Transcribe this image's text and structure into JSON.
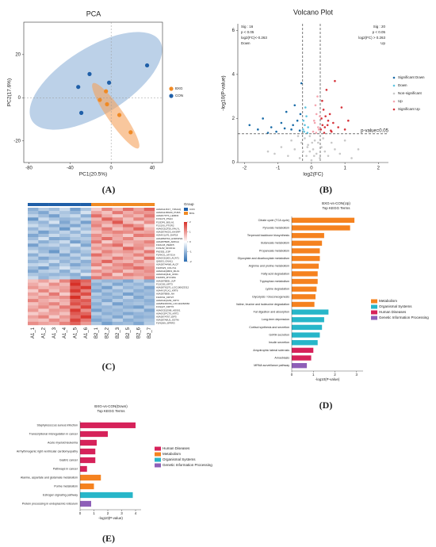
{
  "panel_labels": [
    "(A)",
    "(B)",
    "(C)",
    "(D)",
    "(E)"
  ],
  "chart_data": [
    {
      "type": "scatter",
      "title": "PCA",
      "x_label": "PC1(20.5%)",
      "y_label": "PC2(17.6%)",
      "xlim": [
        -85,
        50
      ],
      "ylim": [
        -30,
        35
      ],
      "xticks": [
        -80,
        -40,
        0,
        40
      ],
      "yticks": [
        -20,
        0,
        20
      ],
      "frame": true,
      "zero_lines": true,
      "legend": "right",
      "series": [
        {
          "name": "BXG",
          "color": "#f08a24",
          "x": [
            -11,
            -5,
            -4,
            8,
            19
          ],
          "y": [
            -1,
            3,
            -3,
            -8,
            -16
          ]
        },
        {
          "name": "CON",
          "color": "#1f5fa8",
          "x": [
            -21,
            -32,
            -2,
            -29,
            35
          ],
          "y": [
            11,
            5,
            7,
            -7,
            15
          ]
        }
      ]
    },
    {
      "type": "scatter",
      "title": "Volcano Plot",
      "x_label": "log2(FC)",
      "y_label": "-log10(P-value)",
      "xlim": [
        -2.2,
        2.3
      ],
      "ylim": [
        0,
        6.3
      ],
      "xticks": [
        -2,
        -1,
        0,
        1,
        2
      ],
      "yticks": [
        0,
        2,
        4,
        6
      ],
      "frame": false,
      "zero_lines": false,
      "legend": "right",
      "x_thresholds": [
        -0.263,
        0.263
      ],
      "y_threshold": 1.301,
      "threshold_label": "p-value=0.05",
      "annotations_left": [
        "Sig : 16",
        "p < 0.05",
        "log2(FC)<-0.263",
        "Down"
      ],
      "annotations_right": [
        "Sig : 20",
        "p < 0.05",
        "log2(FC) > 0.263",
        "Up"
      ],
      "series": [
        {
          "name": "Significant Down",
          "color": "#1a6ca8",
          "x": [
            -1.85,
            -1.6,
            -1.45,
            -1.2,
            -1.05,
            -0.9,
            -0.75,
            -0.6,
            -0.5,
            -0.42,
            -0.35,
            -0.3,
            -1.3,
            -0.8,
            -0.55,
            -0.33
          ],
          "y": [
            1.7,
            1.5,
            2.0,
            1.6,
            1.4,
            1.8,
            2.3,
            1.5,
            2.6,
            1.9,
            1.45,
            3.6,
            1.35,
            1.55,
            1.7,
            2.2
          ]
        },
        {
          "name": "Down",
          "color": "#5ec4e0",
          "x": [
            -0.25,
            -0.2,
            -0.15,
            -0.22,
            -0.18,
            -0.1,
            -0.24,
            -0.12
          ],
          "y": [
            1.5,
            1.7,
            2.1,
            1.4,
            2.5,
            1.6,
            1.9,
            1.35
          ]
        },
        {
          "name": "Non-significant",
          "color": "#c8c8c8",
          "x": [
            -1.1,
            -0.9,
            -0.7,
            -0.6,
            -0.5,
            -0.4,
            -0.35,
            -0.3,
            -0.25,
            -0.2,
            -0.15,
            -0.1,
            -0.05,
            0,
            0.05,
            0.1,
            0.15,
            0.2,
            0.25,
            0.3,
            0.35,
            0.4,
            0.5,
            0.6,
            0.7,
            0.85,
            1.0,
            1.2,
            -0.05,
            0.02,
            0.08,
            -0.12,
            1.4,
            -1.3
          ],
          "y": [
            0.4,
            0.7,
            0.3,
            1.0,
            0.6,
            1.2,
            0.2,
            0.9,
            0.5,
            1.1,
            0.3,
            0.8,
            1.2,
            0.1,
            0.6,
            1.0,
            0.4,
            0.9,
            0.2,
            0.7,
            1.1,
            0.5,
            0.3,
            0.9,
            0.6,
            0.4,
            1.0,
            0.2,
            0.5,
            0.9,
            0.3,
            0.7,
            0.6,
            0.5
          ]
        },
        {
          "name": "Up",
          "color": "#f4a6b0",
          "x": [
            0.05,
            0.1,
            0.15,
            0.2,
            0.12,
            0.22,
            0.08,
            0.18,
            0.25,
            0.14
          ],
          "y": [
            1.4,
            1.8,
            2.2,
            1.6,
            2.6,
            1.5,
            1.9,
            3.0,
            2.1,
            1.35
          ]
        },
        {
          "name": "Significant Up",
          "color": "#d6333a",
          "x": [
            0.28,
            0.3,
            0.33,
            0.36,
            0.4,
            0.45,
            0.5,
            0.55,
            0.6,
            0.65,
            0.7,
            0.8,
            0.9,
            1.0,
            1.1,
            0.32,
            0.38,
            0.42,
            0.48,
            0.58
          ],
          "y": [
            1.5,
            2.0,
            1.7,
            2.4,
            1.6,
            3.3,
            1.9,
            2.2,
            1.4,
            1.8,
            3.7,
            1.6,
            2.5,
            1.5,
            1.9,
            2.8,
            1.35,
            2.1,
            1.7,
            1.45
          ]
        }
      ]
    },
    {
      "type": "heatmap",
      "legend_title": "Group",
      "columns": [
        "A1_1",
        "A1_2",
        "A1_3",
        "A1_4",
        "A1_5",
        "A1_6",
        "B2_1",
        "B2_2",
        "B2_3",
        "B2_5",
        "B2_6",
        "B2_7"
      ],
      "column_groups": [
        "CON",
        "CON",
        "CON",
        "CON",
        "CON",
        "CON",
        "BXG",
        "BXG",
        "BXG",
        "BXG",
        "BXG",
        "BXG"
      ],
      "group_legend": [
        {
          "name": "CON",
          "color": "#1f5fa8"
        },
        {
          "name": "BXG",
          "color": "#f08a24"
        }
      ],
      "colorscale": [
        "#2c6db2",
        "#ffffff",
        "#d73027"
      ],
      "zlim": [
        -2,
        2
      ],
      "colorbar_ticks": [
        2,
        1,
        0,
        -1,
        -2
      ],
      "rows": [
        "A0A0G2JK17_YWHAQ",
        "A0A0G2JRG60_PURA",
        "A0A0F7FTS_LEMD3",
        "F1SG73_PSH4",
        "F1SDF6_BOLA1",
        "F1S1X0_PTGR2",
        "A0A0G2QT50_RALYL",
        "A0A287AKD3_KHSRP",
        "A0A4X1LF5_DAP18",
        "A0A286Z763_HNRNPH1",
        "A0A287B28I_ARFGA",
        "F1RLG5_PEDF5",
        "F1SL82_SFCD1A",
        "P00355_G3P",
        "F1RKG1_MYO1A",
        "A0A0G2QI03_ACAT1",
        "Q08JI3_GNA11",
        "A0A287A4W8_ALCF",
        "F1RKW3_COL7A1",
        "A0A0G2QMD3_MLF1",
        "A0A0G2QIH2_UFD1",
        "F1RK83_MYO18A",
        "A0A287BE5I_JUP",
        "F1SG0S_KRT3",
        "A0A287SQ70_LOC100623312",
        "A0A4X1FLX1_KRT6",
        "A0A287BE6I_NA",
        "F1RKS2_KRT27",
        "A0A0G2QG69_KRT3",
        "A0A8W4FDS6_LOC110260660",
        "F1SQ27_KRT76",
        "A0A0G2QG68_ADS01",
        "A0A0G2PCT0_KRT2",
        "A0A287AT07_EIF5",
        "A0A287A8U2_GSTM",
        "F1RQN9_SPRR3"
      ],
      "values": [
        [
          -1.1,
          -0.7,
          -0.9,
          -0.5,
          -1.3,
          -0.8,
          0.5,
          1.2,
          0.7,
          1.4,
          0.9,
          1.5
        ],
        [
          -0.9,
          -1.2,
          -0.6,
          -0.8,
          -1.0,
          -0.4,
          0.9,
          0.6,
          1.3,
          0.8,
          1.1,
          1.0
        ],
        [
          -0.6,
          -0.9,
          -1.3,
          -0.7,
          -0.5,
          -1.1,
          1.4,
          0.8,
          0.5,
          1.0,
          0.7,
          1.3
        ],
        [
          -1.4,
          -0.5,
          -0.8,
          -1.0,
          -0.9,
          -0.6,
          0.7,
          1.5,
          1.1,
          0.6,
          1.2,
          0.8
        ],
        [
          -0.8,
          -1.0,
          -0.4,
          -1.2,
          -0.7,
          -1.3,
          1.0,
          0.9,
          1.6,
          0.7,
          0.5,
          1.1
        ],
        [
          -0.5,
          -0.8,
          -1.1,
          -0.9,
          -1.2,
          -0.7,
          1.2,
          0.6,
          0.9,
          1.4,
          1.0,
          0.4
        ],
        [
          -1.0,
          -0.6,
          -0.7,
          -1.4,
          -0.5,
          -0.9,
          0.8,
          1.3,
          0.6,
          0.9,
          1.5,
          0.7
        ],
        [
          -0.7,
          -1.3,
          -0.9,
          -0.6,
          -1.0,
          -0.5,
          0.6,
          1.0,
          1.2,
          1.1,
          0.8,
          0.9
        ],
        [
          -1.2,
          -0.9,
          -0.5,
          -0.8,
          -0.6,
          -1.0,
          1.1,
          0.7,
          0.9,
          0.5,
          1.3,
          1.2
        ],
        [
          -0.9,
          -0.4,
          -1.2,
          -1.1,
          -0.8,
          -0.7,
          0.9,
          1.4,
          0.8,
          1.2,
          0.6,
          0.6
        ],
        [
          -0.6,
          -1.1,
          -0.8,
          -0.5,
          -1.3,
          -0.9,
          1.3,
          0.5,
          1.0,
          0.8,
          0.9,
          1.2
        ],
        [
          -1.3,
          -0.7,
          -0.6,
          -0.9,
          -0.4,
          -1.2,
          0.7,
          1.1,
          1.4,
          0.6,
          1.0,
          0.9
        ],
        [
          -0.8,
          -1.0,
          -1.0,
          -0.7,
          -0.9,
          -0.6,
          1.0,
          0.8,
          0.7,
          1.5,
          1.1,
          0.5
        ],
        [
          -0.5,
          -0.9,
          -1.4,
          -0.6,
          -1.1,
          -0.8,
          0.6,
          1.2,
          0.9,
          1.0,
          0.7,
          1.3
        ],
        [
          -1.1,
          -0.6,
          -0.7,
          -1.2,
          -0.6,
          -1.0,
          1.4,
          0.9,
          0.6,
          0.8,
          1.2,
          0.7
        ],
        [
          -0.7,
          -1.2,
          -0.9,
          -0.8,
          -1.0,
          -0.5,
          0.8,
          0.7,
          1.3,
          0.9,
          0.6,
          1.4
        ],
        [
          -1.0,
          -0.8,
          -0.5,
          -1.0,
          -0.7,
          -1.1,
          0.9,
          1.5,
          0.8,
          0.7,
          1.1,
          0.6
        ],
        [
          -0.6,
          -0.5,
          -1.1,
          -0.7,
          -1.2,
          -0.9,
          1.2,
          0.6,
          1.1,
          1.3,
          0.8,
          0.8
        ],
        [
          -0.9,
          -1.3,
          -0.8,
          -0.4,
          -0.8,
          -0.7,
          0.5,
          1.0,
          0.9,
          1.1,
          1.4,
          1.0
        ],
        [
          -1.2,
          -0.7,
          -0.6,
          -1.1,
          -0.5,
          -1.0,
          1.1,
          0.8,
          1.2,
          0.6,
          0.9,
          1.1
        ],
        [
          -0.8,
          -0.9,
          -1.0,
          -0.9,
          -1.1,
          -0.4,
          0.7,
          1.3,
          0.5,
          1.2,
          1.0,
          0.9
        ],
        [
          -0.5,
          -1.0,
          -0.7,
          -0.6,
          -0.9,
          -1.3,
          1.3,
          0.9,
          1.0,
          0.8,
          0.7,
          1.2
        ],
        [
          0.6,
          0.9,
          0.5,
          1.2,
          1.8,
          1.5,
          -0.8,
          -1.0,
          -0.9,
          -1.2,
          -0.7,
          -1.1
        ],
        [
          0.8,
          0.5,
          1.1,
          0.7,
          2.0,
          1.3,
          -1.1,
          -0.7,
          -1.2,
          -0.8,
          -1.0,
          -0.6
        ],
        [
          1.0,
          0.7,
          0.8,
          0.9,
          1.6,
          1.9,
          -0.9,
          -1.3,
          -0.6,
          -1.0,
          -0.8,
          -1.2
        ],
        [
          0.5,
          1.2,
          0.6,
          1.0,
          1.9,
          1.2,
          -1.2,
          -0.8,
          -1.0,
          -0.7,
          -1.1,
          -0.9
        ],
        [
          0.9,
          0.6,
          1.3,
          0.5,
          1.4,
          1.7,
          -0.7,
          -1.1,
          -0.8,
          -1.3,
          -0.9,
          -1.0
        ],
        [
          0.7,
          1.0,
          0.9,
          1.1,
          2.0,
          1.0,
          -1.0,
          -0.9,
          -1.1,
          -0.6,
          -1.2,
          -0.8
        ],
        [
          1.2,
          0.8,
          0.6,
          0.8,
          1.5,
          1.6,
          -0.8,
          -1.2,
          -0.7,
          -1.0,
          -0.9,
          -1.1
        ],
        [
          0.6,
          0.9,
          1.2,
          0.7,
          1.7,
          1.4,
          -1.1,
          -0.6,
          -1.3,
          -0.9,
          -0.8,
          -1.0
        ],
        [
          0.8,
          1.1,
          0.7,
          1.3,
          1.2,
          1.8,
          -0.9,
          -1.0,
          -0.8,
          -1.1,
          -1.3,
          -0.7
        ],
        [
          1.0,
          0.5,
          1.0,
          0.9,
          1.9,
          1.1,
          -1.3,
          -0.9,
          -1.0,
          -0.8,
          -0.7,
          -1.2
        ],
        [
          0.5,
          0.8,
          0.9,
          0.6,
          1.6,
          1.5,
          -0.7,
          -1.1,
          -0.9,
          -1.2,
          -1.0,
          -0.9
        ],
        [
          0.9,
          1.2,
          0.5,
          1.0,
          1.4,
          1.9,
          -1.0,
          -0.8,
          -1.2,
          -0.7,
          -1.1,
          -1.0
        ],
        [
          0.7,
          0.6,
          1.1,
          0.8,
          1.8,
          1.3,
          -1.2,
          -1.0,
          -0.6,
          -1.1,
          -0.9,
          -0.8
        ],
        [
          1.1,
          0.9,
          0.8,
          1.2,
          1.5,
          1.0,
          -0.8,
          -1.3,
          -1.0,
          -0.9,
          -1.2,
          -0.7
        ]
      ]
    },
    {
      "type": "barh",
      "title": "BXG-vs-CON(Up)",
      "subtitle": "Top KEGG Terms",
      "x_label": "-log10(P-value)",
      "xlim": [
        0,
        3.3
      ],
      "xticks": [
        0,
        1,
        2,
        3
      ],
      "categories": [
        "Citrate cycle (TCA cycle)",
        "Pyruvate metabolism",
        "Terpenoid backbone biosynthesis",
        "Butanoate metabolism",
        "Propanoate metabolism",
        "Glyoxylate and dicarboxylate metabolism",
        "Arginine and proline metabolism",
        "Fatty acid degradation",
        "Tryptophan metabolism",
        "Lysine degradation",
        "Glycolysis / Gluconeogenesis",
        "Valine, leucine and isoleucine degradation",
        "Fat digestion and absorption",
        "Long-term depression",
        "Cortisol synthesis and secretion",
        "GnRH secretion",
        "Insulin secretion",
        "Amyotrophic lateral sclerosis",
        "Amoebiasis",
        "MRNA surveillance pathway"
      ],
      "values": [
        2.9,
        2.7,
        1.5,
        1.4,
        1.3,
        1.3,
        1.25,
        1.2,
        1.2,
        1.15,
        1.1,
        1.05,
        1.7,
        1.5,
        1.4,
        1.3,
        1.2,
        1.0,
        0.9,
        0.7
      ],
      "bar_colors": [
        "#f5821f",
        "#f5821f",
        "#f5821f",
        "#f5821f",
        "#f5821f",
        "#f5821f",
        "#f5821f",
        "#f5821f",
        "#f5821f",
        "#f5821f",
        "#f5821f",
        "#f5821f",
        "#27b6c9",
        "#27b6c9",
        "#27b6c9",
        "#27b6c9",
        "#27b6c9",
        "#d6225a",
        "#d6225a",
        "#8e5fb8"
      ],
      "legend": [
        {
          "name": "Metabolism",
          "color": "#f5821f"
        },
        {
          "name": "Organismal Systems",
          "color": "#27b6c9"
        },
        {
          "name": "Human Diseases",
          "color": "#d6225a"
        },
        {
          "name": "Genetic Information Processing",
          "color": "#8e5fb8"
        }
      ]
    },
    {
      "type": "barh",
      "title": "BXG-vs-CON(Down)",
      "subtitle": "Top KEGG Terms",
      "x_label": "-log10(P-value)",
      "xlim": [
        0,
        4.4
      ],
      "xticks": [
        0,
        1,
        2,
        3,
        4
      ],
      "categories": [
        "Staphylococcus aureus infection",
        "Transcriptional misregulation in cancer",
        "Acute myeloid leukemia",
        "Arrhythmogenic right ventricular cardiomyopathy",
        "Gastric cancer",
        "Pathways in cancer",
        "Alanine, aspartate and glutamate metabolism",
        "Purine metabolism",
        "Estrogen signaling pathway",
        "Protein processing in endoplasmic reticulum"
      ],
      "values": [
        4.0,
        2.0,
        1.2,
        1.1,
        1.1,
        0.5,
        1.5,
        1.0,
        3.8,
        0.8
      ],
      "bar_colors": [
        "#d6225a",
        "#d6225a",
        "#d6225a",
        "#d6225a",
        "#d6225a",
        "#d6225a",
        "#f5821f",
        "#f5821f",
        "#27b6c9",
        "#8e5fb8"
      ],
      "legend": [
        {
          "name": "Human Diseases",
          "color": "#d6225a"
        },
        {
          "name": "Metabolism",
          "color": "#f5821f"
        },
        {
          "name": "Organismal Systems",
          "color": "#27b6c9"
        },
        {
          "name": "Genetic Information Processing",
          "color": "#8e5fb8"
        }
      ]
    }
  ]
}
